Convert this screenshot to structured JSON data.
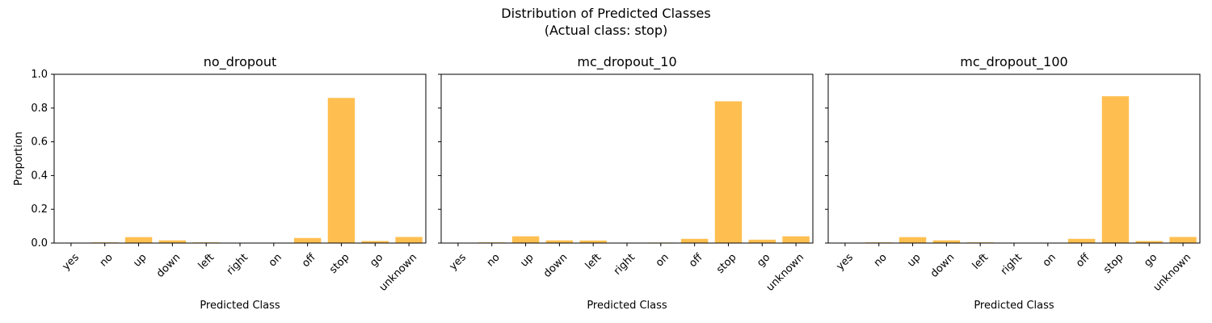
{
  "figure": {
    "title_line1": "Distribution of Predicted Classes",
    "title_line2": "(Actual class: stop)",
    "bar_color": "#ffbf50"
  },
  "chart_data": [
    {
      "type": "bar",
      "title": "no_dropout",
      "xlabel": "Predicted Class",
      "ylabel": "Proportion",
      "ylim": [
        0,
        1.0
      ],
      "yticks": [
        "0.0",
        "0.2",
        "0.4",
        "0.6",
        "0.8",
        "1.0"
      ],
      "categories": [
        "yes",
        "no",
        "up",
        "down",
        "left",
        "right",
        "on",
        "off",
        "stop",
        "go",
        "unknown"
      ],
      "values": [
        0.0,
        0.004,
        0.035,
        0.016,
        0.004,
        0.0,
        0.0,
        0.03,
        0.86,
        0.012,
        0.036
      ]
    },
    {
      "type": "bar",
      "title": "mc_dropout_10",
      "xlabel": "Predicted Class",
      "ylabel": "",
      "ylim": [
        0,
        1.0
      ],
      "yticks": [
        "0.0",
        "0.2",
        "0.4",
        "0.6",
        "0.8",
        "1.0"
      ],
      "categories": [
        "yes",
        "no",
        "up",
        "down",
        "left",
        "right",
        "on",
        "off",
        "stop",
        "go",
        "unknown"
      ],
      "values": [
        0.0,
        0.004,
        0.04,
        0.016,
        0.015,
        0.0,
        0.003,
        0.025,
        0.84,
        0.02,
        0.04
      ]
    },
    {
      "type": "bar",
      "title": "mc_dropout_100",
      "xlabel": "Predicted Class",
      "ylabel": "",
      "ylim": [
        0,
        1.0
      ],
      "yticks": [
        "0.0",
        "0.2",
        "0.4",
        "0.6",
        "0.8",
        "1.0"
      ],
      "categories": [
        "yes",
        "no",
        "up",
        "down",
        "left",
        "right",
        "on",
        "off",
        "stop",
        "go",
        "unknown"
      ],
      "values": [
        0.0,
        0.004,
        0.035,
        0.016,
        0.004,
        0.0,
        0.0,
        0.025,
        0.87,
        0.012,
        0.036
      ]
    }
  ]
}
